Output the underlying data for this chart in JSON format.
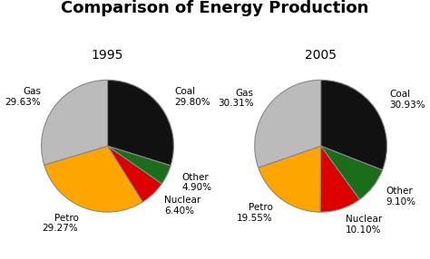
{
  "title": "Comparison of Energy Production",
  "title_fontsize": 13,
  "title_fontweight": "bold",
  "pie1_title": "1995",
  "pie2_title": "2005",
  "values_1995": [
    29.8,
    4.9,
    6.4,
    29.27,
    29.63
  ],
  "values_2005": [
    30.93,
    9.1,
    10.1,
    19.55,
    30.31
  ],
  "colors": [
    "#111111",
    "#1a6e1a",
    "#dd0000",
    "#ffa500",
    "#bbbbbb"
  ],
  "labels_1995": [
    "Coal\n29.80%",
    "Other\n4.90%",
    "Nuclear\n6.40%",
    "Petro\n29.27%",
    "Gas\n29.63%"
  ],
  "labels_2005": [
    "Coal\n30.93%",
    "Other\n9.10%",
    "Nuclear\n10.10%",
    "Petro\n19.55%",
    "Gas\n30.31%"
  ],
  "startangle": 90,
  "label_fontsize": 7.5,
  "subtitle_fontsize": 10,
  "figsize": [
    4.74,
    2.86
  ],
  "dpi": 100
}
